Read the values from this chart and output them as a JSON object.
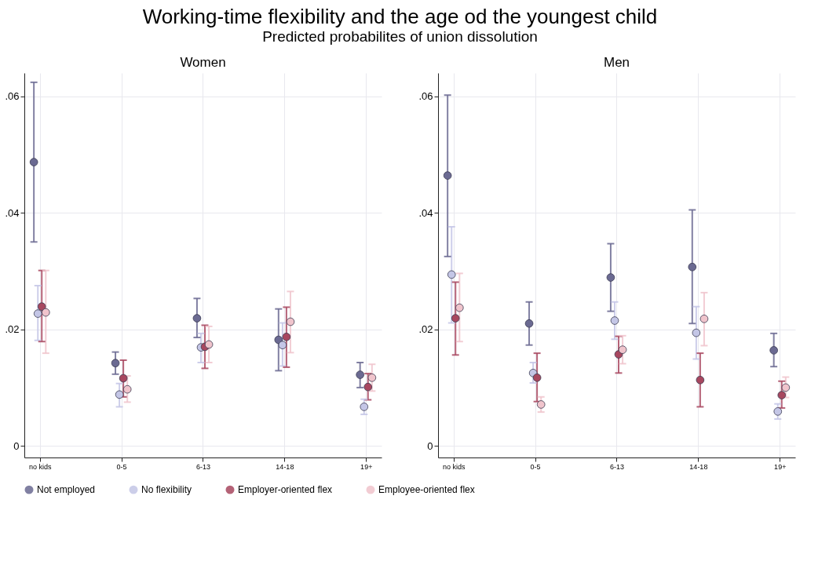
{
  "chart_data": [
    {
      "type": "scatter",
      "title": "Women",
      "annotations": [
        "Working-time flexibility and the age od the youngest child",
        "Predicted probabilites of union dissolution"
      ],
      "categories": [
        "no kids",
        "0-5",
        "6-13",
        "14-18",
        "19+"
      ],
      "ylim": [
        -0.002,
        0.064
      ],
      "yticks": [
        0,
        {
          "value": 0.02,
          "label": ".02"
        },
        {
          "value": 0.04,
          "label": ".04"
        },
        {
          "value": 0.06,
          "label": ".06"
        }
      ],
      "grid": true,
      "legend": "bottom",
      "marker": "circle",
      "series": [
        {
          "name": "Not employed",
          "color": "#6b6a92",
          "values": [
            0.0487,
            0.0142,
            0.0219,
            0.0182,
            0.0122
          ],
          "errors": [
            [
              0.035,
              0.0624
            ],
            [
              0.0123,
              0.0161
            ],
            [
              0.0186,
              0.0253
            ],
            [
              0.0129,
              0.0235
            ],
            [
              0.01,
              0.0143
            ]
          ]
        },
        {
          "name": "No flexibility",
          "color": "#c4c6e6",
          "values": [
            0.0227,
            0.0088,
            0.0169,
            0.0173,
            0.0067
          ],
          "errors": [
            [
              0.0181,
              0.0275
            ],
            [
              0.0067,
              0.0107
            ],
            [
              0.0143,
              0.0193
            ],
            [
              0.0137,
              0.0211
            ],
            [
              0.0054,
              0.008
            ]
          ]
        },
        {
          "name": "Employer-oriented flex",
          "color": "#a8475f",
          "values": [
            0.0239,
            0.0116,
            0.017,
            0.0187,
            0.0101
          ],
          "errors": [
            [
              0.0179,
              0.0301
            ],
            [
              0.0084,
              0.0147
            ],
            [
              0.0133,
              0.0207
            ],
            [
              0.0135,
              0.0238
            ],
            [
              0.0079,
              0.0124
            ]
          ]
        },
        {
          "name": "Employee-oriented flex",
          "color": "#f0c4cc",
          "values": [
            0.0229,
            0.0097,
            0.0174,
            0.0213,
            0.0117
          ],
          "errors": [
            [
              0.0159,
              0.0301
            ],
            [
              0.0075,
              0.012
            ],
            [
              0.0143,
              0.0205
            ],
            [
              0.016,
              0.0265
            ],
            [
              0.0094,
              0.014
            ]
          ]
        }
      ]
    },
    {
      "type": "scatter",
      "title": "Men",
      "categories": [
        "no kids",
        "0-5",
        "6-13",
        "14-18",
        "19+"
      ],
      "ylim": [
        -0.002,
        0.064
      ],
      "yticks": [
        0,
        {
          "value": 0.02,
          "label": ".02"
        },
        {
          "value": 0.04,
          "label": ".04"
        },
        {
          "value": 0.06,
          "label": ".06"
        }
      ],
      "grid": true,
      "marker": "circle",
      "series": [
        {
          "name": "Not employed",
          "color": "#6b6a92",
          "values": [
            0.0464,
            0.021,
            0.0289,
            0.0307,
            0.0164
          ],
          "errors": [
            [
              0.0325,
              0.0602
            ],
            [
              0.0173,
              0.0247
            ],
            [
              0.0231,
              0.0347
            ],
            [
              0.021,
              0.0405
            ],
            [
              0.0136,
              0.0193
            ]
          ]
        },
        {
          "name": "No flexibility",
          "color": "#c4c6e6",
          "values": [
            0.0294,
            0.0125,
            0.0215,
            0.0194,
            0.0059
          ],
          "errors": [
            [
              0.0211,
              0.0376
            ],
            [
              0.0108,
              0.0143
            ],
            [
              0.0183,
              0.0247
            ],
            [
              0.0149,
              0.0239
            ],
            [
              0.0046,
              0.0072
            ]
          ]
        },
        {
          "name": "Employer-oriented flex",
          "color": "#a8475f",
          "values": [
            0.0219,
            0.0117,
            0.0157,
            0.0113,
            0.0087
          ],
          "errors": [
            [
              0.0156,
              0.0281
            ],
            [
              0.0076,
              0.0159
            ],
            [
              0.0125,
              0.0188
            ],
            [
              0.0067,
              0.0159
            ],
            [
              0.0065,
              0.0111
            ]
          ]
        },
        {
          "name": "Employee-oriented flex",
          "color": "#f0c4cc",
          "values": [
            0.0237,
            0.0071,
            0.0165,
            0.0218,
            0.01
          ],
          "errors": [
            [
              0.0179,
              0.0296
            ],
            [
              0.0058,
              0.0084
            ],
            [
              0.0141,
              0.0189
            ],
            [
              0.0172,
              0.0263
            ],
            [
              0.0083,
              0.0118
            ]
          ]
        }
      ]
    }
  ]
}
